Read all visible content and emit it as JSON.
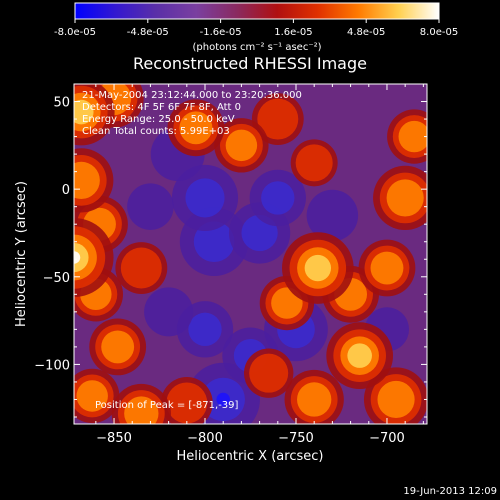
{
  "colorbar": {
    "ticks": [
      "-8.0e-05",
      "-4.8e-05",
      "-1.6e-05",
      "1.6e-05",
      "4.8e-05",
      "8.0e-05"
    ],
    "range": [
      -8e-05,
      8e-05
    ],
    "unit_label": "(photons cm⁻² s⁻¹ asec⁻²)",
    "colors": [
      "#0000ff",
      "#3318d0",
      "#5a2fa8",
      "#7a3fa0",
      "#8a2a60",
      "#b01010",
      "#e03000",
      "#ff7a00",
      "#ffd050",
      "#ffffff"
    ]
  },
  "chart_data": {
    "type": "heatmap",
    "title": "Reconstructed RHESSI Image",
    "xlabel": "Heliocentric X (arcsec)",
    "ylabel": "Heliocentric Y (arcsec)",
    "xlim": [
      -872,
      -678
    ],
    "ylim": [
      -134,
      60
    ],
    "xticks": [
      -850,
      -800,
      -750,
      -700
    ],
    "yticks": [
      50,
      0,
      -50,
      -100
    ],
    "xtick_labels": [
      "−850",
      "−800",
      "−750",
      "−700"
    ],
    "ytick_labels": [
      "50",
      "0",
      "−50",
      "−100"
    ],
    "annotations": [
      "21-May-2004 23:12:44.000 to 23:20:36.000",
      "Detectors: 4F 5F 6F 7F 8F, Att 0",
      "Energy Range: 25.0 - 50.0 keV",
      "Clean    Total counts: 5.99E+03"
    ],
    "peak_label": "Position of Peak = [-871,-39]",
    "peak_position": [
      -871,
      -39
    ],
    "blobs": [
      {
        "x": -868,
        "y": 44,
        "v": 0.75
      },
      {
        "x": -850,
        "y": 52,
        "v": 0.6
      },
      {
        "x": -868,
        "y": 5,
        "v": 0.7
      },
      {
        "x": -872,
        "y": -39,
        "v": 1.0
      },
      {
        "x": -858,
        "y": -20,
        "v": 0.55
      },
      {
        "x": -860,
        "y": -60,
        "v": 0.5
      },
      {
        "x": -835,
        "y": -45,
        "v": 0.45
      },
      {
        "x": -848,
        "y": -90,
        "v": 0.55
      },
      {
        "x": -862,
        "y": -118,
        "v": 0.5
      },
      {
        "x": -835,
        "y": -128,
        "v": 0.6
      },
      {
        "x": -810,
        "y": -122,
        "v": 0.45
      },
      {
        "x": -805,
        "y": 35,
        "v": 0.55
      },
      {
        "x": -780,
        "y": 25,
        "v": 0.5
      },
      {
        "x": -760,
        "y": 40,
        "v": 0.45
      },
      {
        "x": -740,
        "y": 15,
        "v": 0.35
      },
      {
        "x": -738,
        "y": -45,
        "v": 0.85
      },
      {
        "x": -755,
        "y": -65,
        "v": 0.5
      },
      {
        "x": -720,
        "y": -60,
        "v": 0.55
      },
      {
        "x": -700,
        "y": -45,
        "v": 0.55
      },
      {
        "x": -690,
        "y": -5,
        "v": 0.7
      },
      {
        "x": -685,
        "y": 30,
        "v": 0.5
      },
      {
        "x": -715,
        "y": -95,
        "v": 0.75
      },
      {
        "x": -695,
        "y": -120,
        "v": 0.7
      },
      {
        "x": -740,
        "y": -120,
        "v": 0.6
      },
      {
        "x": -765,
        "y": -105,
        "v": 0.4
      },
      {
        "x": -800,
        "y": -80,
        "v": -0.55
      },
      {
        "x": -795,
        "y": -30,
        "v": -0.8
      },
      {
        "x": -800,
        "y": -5,
        "v": -0.75
      },
      {
        "x": -815,
        "y": 20,
        "v": -0.5
      },
      {
        "x": -770,
        "y": -25,
        "v": -0.65
      },
      {
        "x": -760,
        "y": -5,
        "v": -0.55
      },
      {
        "x": -750,
        "y": -80,
        "v": -0.7
      },
      {
        "x": -730,
        "y": -15,
        "v": -0.45
      },
      {
        "x": -790,
        "y": -120,
        "v": -0.9
      },
      {
        "x": -775,
        "y": -95,
        "v": -0.55
      },
      {
        "x": -830,
        "y": -10,
        "v": -0.35
      },
      {
        "x": -820,
        "y": -70,
        "v": -0.4
      },
      {
        "x": -700,
        "y": -80,
        "v": -0.3
      }
    ]
  },
  "timestamp": "19-Jun-2013 12:09"
}
